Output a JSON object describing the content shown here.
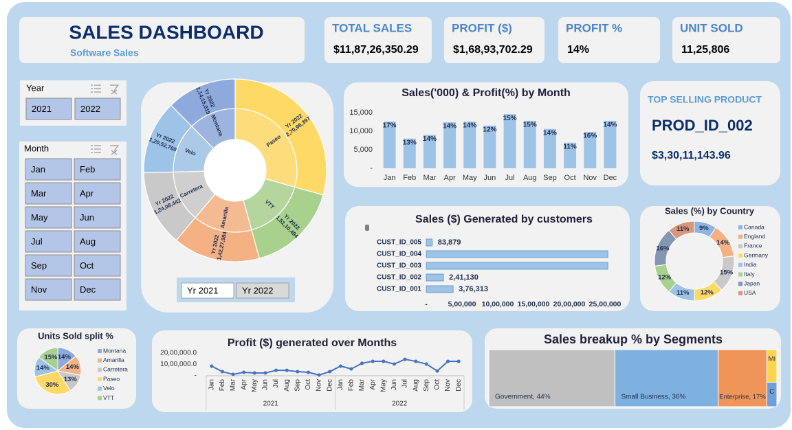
{
  "header": {
    "title": "SALES DASHBOARD",
    "subtitle": "Software Sales"
  },
  "kpis": [
    {
      "label": "TOTAL SALES",
      "value": "$11,87,26,350.29"
    },
    {
      "label": "PROFIT ($)",
      "value": "$1,68,93,702.29"
    },
    {
      "label": "PROFIT %",
      "value": "14%"
    },
    {
      "label": "UNIT SOLD",
      "value": "11,25,806"
    }
  ],
  "top_product": {
    "title": "TOP SELLING PRODUCT",
    "product": "PROD_ID_002",
    "value": "$3,30,11,143.96"
  },
  "slicers": {
    "year": {
      "title": "Year",
      "items": [
        "2021",
        "2022"
      ]
    },
    "month": {
      "title": "Month",
      "items": [
        "Jan",
        "Feb",
        "Mar",
        "Apr",
        "May",
        "Jun",
        "Jul",
        "Aug",
        "Sep",
        "Oct",
        "Nov",
        "Dec"
      ]
    },
    "sunburst_year": {
      "items": [
        "Yr 2021",
        "Yr 2022"
      ]
    }
  },
  "chart_data": [
    {
      "type": "sunburst",
      "categories": [
        "Paseo",
        "VTT",
        "Amarilla",
        "Carretera",
        "Velo",
        "Montana"
      ],
      "colors": [
        "#ffd966",
        "#a9d18e",
        "#f4b183",
        "#c9c9c9",
        "#9dc3e6",
        "#8ea9db"
      ],
      "series": [
        {
          "name": "Yr 2022",
          "values": [
            27096397,
            15110494,
            14227984,
            12408442,
            12052760,
            11415019
          ],
          "value_labels": [
            "2,70,96,397",
            "1,51,10,494",
            "1,42,27,984",
            "1,24,08,442",
            "1,20,52,760",
            "1,14,15,019"
          ]
        }
      ]
    },
    {
      "type": "bar",
      "title": "Sales('000) & Profit(%) by Month",
      "categories": [
        "Jan",
        "Feb",
        "Mar",
        "Apr",
        "May",
        "Jun",
        "Jul",
        "Aug",
        "Sep",
        "Oct",
        "Nov",
        "Dec"
      ],
      "series": [
        {
          "color": "#9dc3e6",
          "values": [
            12600,
            8000,
            9000,
            12400,
            12600,
            11500,
            14600,
            12800,
            10600,
            6900,
            9800,
            12800
          ]
        },
        {
          "values": [
            17,
            13,
            14,
            14,
            14,
            12,
            15,
            15,
            14,
            11,
            16,
            14
          ],
          "value_labels": [
            "17%",
            "13%",
            "14%",
            "14%",
            "14%",
            "12%",
            "15%",
            "15%",
            "14%",
            "11%",
            "16%",
            "14%"
          ]
        }
      ],
      "ylim": [
        0,
        16000
      ],
      "yticks": [
        {
          "value": 0,
          "label": "-"
        },
        {
          "value": 5000,
          "label": "5,000"
        },
        {
          "value": 10000,
          "label": "10,000"
        },
        {
          "value": 15000,
          "label": "15,000"
        }
      ]
    },
    {
      "type": "hbar",
      "title": "Sales ($) Generated by customers",
      "categories": [
        "CUST_ID_005",
        "CUST_ID_004",
        "CUST_ID_003",
        "CUST_ID_002",
        "CUST_ID_001"
      ],
      "color": "#9dc3e6",
      "values": [
        83879,
        2540000,
        2540000,
        241130,
        376313
      ],
      "value_labels": [
        "83,879",
        null,
        null,
        "2,41,130",
        "3,76,313"
      ],
      "xlim": [
        0,
        2700000
      ],
      "xticks": [
        {
          "value": 0,
          "label": "-"
        },
        {
          "value": 500000,
          "label": "5,00,000"
        },
        {
          "value": 1000000,
          "label": "10,00,000"
        },
        {
          "value": 1500000,
          "label": "15,00,000"
        },
        {
          "value": 2000000,
          "label": "20,00,000"
        },
        {
          "value": 2500000,
          "label": "25,00,000"
        }
      ]
    },
    {
      "type": "donut",
      "title": "Sales (%) by Country",
      "categories": [
        "Canada",
        "England",
        "France",
        "Germany",
        "India",
        "Italy",
        "Japan",
        "USA"
      ],
      "colors": [
        "#8db4e2",
        "#f4b183",
        "#c9c9c9",
        "#ffd966",
        "#9dc3e6",
        "#a9d18e",
        "#8497b0",
        "#d9967a"
      ],
      "values": [
        9,
        14,
        15,
        12,
        11,
        12,
        16,
        11
      ],
      "value_labels": [
        "9%",
        "14%",
        "15%",
        "12%",
        "11%",
        "12%",
        "16%",
        "11%"
      ]
    },
    {
      "type": "pie",
      "title": "Units Sold split %",
      "categories": [
        "Montana",
        "Amarilla",
        "Carretera",
        "Paseo",
        "Velo",
        "VTT"
      ],
      "colors": [
        "#8ea9db",
        "#f4b183",
        "#c9c9c9",
        "#ffd966",
        "#9dc3e6",
        "#a9d18e"
      ],
      "values": [
        14,
        14,
        13,
        30,
        14,
        15
      ],
      "value_labels": [
        "14%",
        "14%",
        "13%",
        "30%",
        "14%",
        "15%"
      ]
    },
    {
      "type": "line",
      "title": "Profit ($) generated over Months",
      "categories": [
        "Jan",
        "Feb",
        "Mar",
        "Apr",
        "May",
        "Jun",
        "Jul",
        "Aug",
        "Sep",
        "Oct",
        "Nov",
        "Dec",
        "Jan",
        "Feb",
        "Mar",
        "Apr",
        "May",
        "Jun",
        "Jul",
        "Aug",
        "Sep",
        "Oct",
        "Nov",
        "Dec"
      ],
      "x_groups": [
        "2021",
        "2022"
      ],
      "color": "#4472c4",
      "values": [
        850000,
        360000,
        120000,
        300000,
        240000,
        240000,
        480000,
        480000,
        360000,
        300000,
        60000,
        360000,
        850000,
        600000,
        1100000,
        1270000,
        1270000,
        1030000,
        1450000,
        1270000,
        1030000,
        420000,
        1270000,
        1270000
      ],
      "ylim": [
        0,
        2200000
      ],
      "yticks": [
        {
          "value": 0,
          "label": "-"
        },
        {
          "value": 1000000,
          "label": "10,00,000.0"
        },
        {
          "value": 2000000,
          "label": "20,00,000.0"
        }
      ]
    },
    {
      "type": "treemap",
      "title": "Sales breakup % by Segments",
      "labels": [
        "Government, 44%",
        "Small Business, 36%",
        "Enterprise, 17%",
        "Mi",
        "C"
      ],
      "colors": [
        "#c0c0c0",
        "#7eb0e0",
        "#f0955a",
        "#ffd54f",
        "#6f9fd8"
      ],
      "values": [
        44,
        36,
        17,
        2,
        1.5
      ]
    }
  ]
}
